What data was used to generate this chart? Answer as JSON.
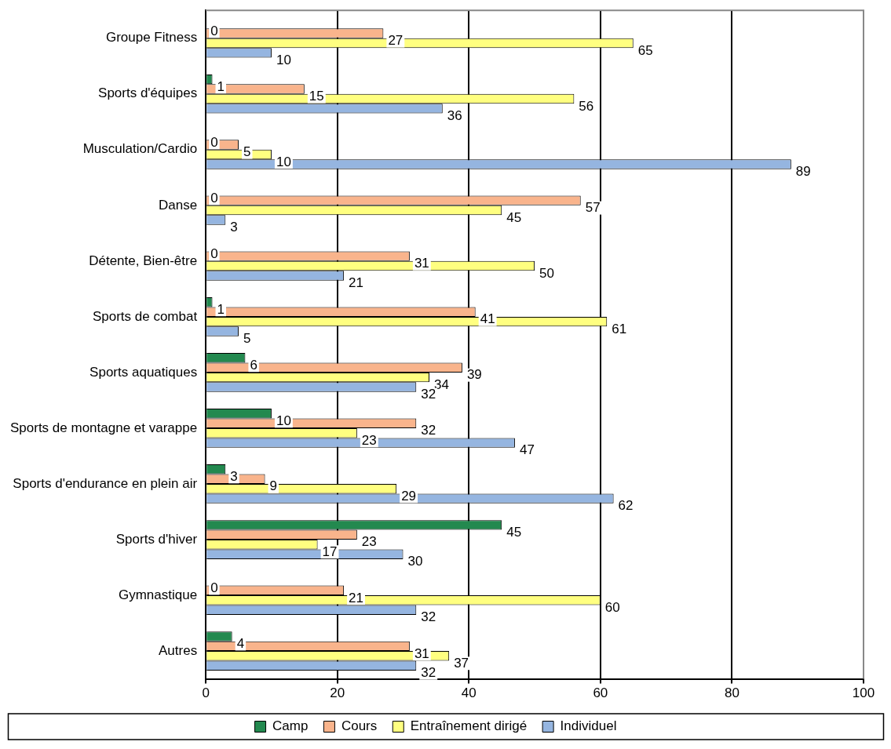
{
  "chart_data": {
    "type": "bar",
    "orientation": "horizontal",
    "categories": [
      "Groupe Fitness",
      "Sports d'équipes",
      "Musculation/Cardio",
      "Danse",
      "Détente, Bien-être",
      "Sports de combat",
      "Sports aquatiques",
      "Sports de montagne et varappe",
      "Sports d'endurance en plein air",
      "Sports d'hiver",
      "Gymnastique",
      "Autres"
    ],
    "series": [
      {
        "name": "Camp",
        "color": "#23894f",
        "values": [
          0,
          1,
          0,
          0,
          0,
          1,
          6,
          10,
          3,
          45,
          0,
          4
        ]
      },
      {
        "name": "Cours",
        "color": "#f9b48c",
        "values": [
          27,
          15,
          5,
          57,
          31,
          41,
          39,
          32,
          9,
          23,
          21,
          31
        ]
      },
      {
        "name": "Entraînement dirigé",
        "color": "#ffff80",
        "values": [
          65,
          56,
          10,
          45,
          50,
          61,
          34,
          23,
          29,
          17,
          60,
          37
        ]
      },
      {
        "name": "Individuel",
        "color": "#95b5e0",
        "values": [
          10,
          36,
          89,
          3,
          21,
          5,
          32,
          47,
          62,
          30,
          32,
          32
        ]
      }
    ],
    "xlim": [
      0,
      100
    ],
    "xticks": [
      0,
      20,
      40,
      60,
      80,
      100
    ],
    "grid": "x",
    "legend": "bottom",
    "data_labels": true
  }
}
